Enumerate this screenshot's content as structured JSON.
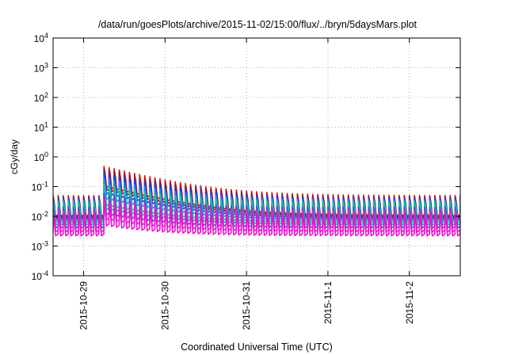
{
  "chart_data": {
    "type": "line",
    "title": "/data/run/goesPlots/archive/2015-11-02/15:00/flux/../bryn/5daysMars.plot",
    "xlabel": "Coordinated Universal Time (UTC)",
    "ylabel": "cGy/day",
    "yscale": "log",
    "ylim": [
      0.0001,
      10000
    ],
    "yticks": [
      {
        "base": "10",
        "exp": "-4",
        "value": 0.0001
      },
      {
        "base": "10",
        "exp": "-3",
        "value": 0.001
      },
      {
        "base": "10",
        "exp": "-2",
        "value": 0.01
      },
      {
        "base": "10",
        "exp": "-1",
        "value": 0.1
      },
      {
        "base": "10",
        "exp": "0",
        "value": 1
      },
      {
        "base": "10",
        "exp": "1",
        "value": 10
      },
      {
        "base": "10",
        "exp": "2",
        "value": 100
      },
      {
        "base": "10",
        "exp": "3",
        "value": 1000
      },
      {
        "base": "10",
        "exp": "4",
        "value": 10000
      }
    ],
    "xlim": [
      "2015-10-28T15:00",
      "2015-11-02T15:00"
    ],
    "xticks": [
      {
        "label": "2015-10-29",
        "date": "2015-10-29T00:00"
      },
      {
        "label": "2015-10-30",
        "date": "2015-10-30T00:00"
      },
      {
        "label": "2015-10-31",
        "date": "2015-10-31T00:00"
      },
      {
        "label": "2015-11-1",
        "date": "2015-11-01T00:00"
      },
      {
        "label": "2015-11-2",
        "date": "2015-11-02T00:00"
      }
    ],
    "grid": true,
    "pattern": "sawtooth, roughly 90-minute period, enhancement starting near 2015-10-29 05:30 decaying over ~1 day",
    "series": [
      {
        "color": "#dd1111",
        "baseline_peak": 0.05,
        "enhanced_peak": 0.5,
        "trough_ratio": 0.2
      },
      {
        "color": "#8a1a2a",
        "baseline_peak": 0.045,
        "enhanced_peak": 0.4,
        "trough_ratio": 0.2
      },
      {
        "color": "#1a3ee0",
        "baseline_peak": 0.04,
        "enhanced_peak": 0.3,
        "trough_ratio": 0.2
      },
      {
        "color": "#2288ee",
        "baseline_peak": 0.035,
        "enhanced_peak": 0.2,
        "trough_ratio": 0.2
      },
      {
        "color": "#22cc88",
        "baseline_peak": 0.03,
        "enhanced_peak": 0.12,
        "trough_ratio": 0.2
      },
      {
        "color": "#11bbbb",
        "baseline_peak": 0.025,
        "enhanced_peak": 0.09,
        "trough_ratio": 0.2
      },
      {
        "color": "#6644cc",
        "baseline_peak": 0.02,
        "enhanced_peak": 0.06,
        "trough_ratio": 0.2
      },
      {
        "color": "#cc33cc",
        "baseline_peak": 0.015,
        "enhanced_peak": 0.04,
        "trough_ratio": 0.2
      },
      {
        "color": "#ee11cc",
        "baseline_peak": 0.011,
        "enhanced_peak": 0.025,
        "trough_ratio": 0.2
      }
    ]
  }
}
